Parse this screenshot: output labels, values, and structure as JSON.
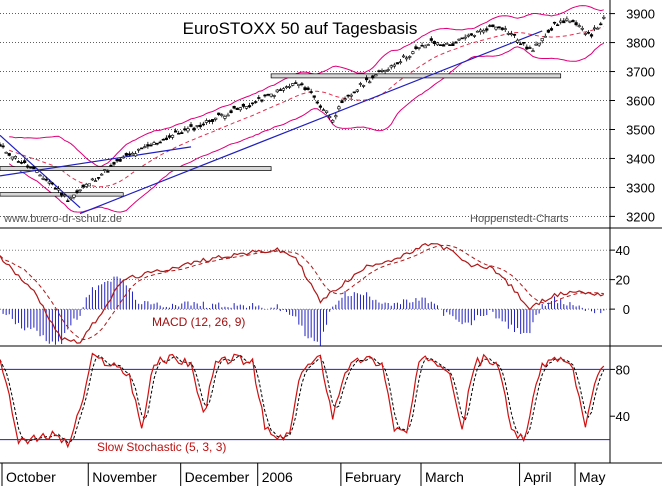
{
  "title": "EuroSTOXX 50 auf Tagesbasis",
  "source_left": "www.buero-dr-schulz.de",
  "source_right": "Hoppenstedt-Charts",
  "colors": {
    "background": "#ffffff",
    "price_bars": "#000000",
    "bollinger": "#e0007a",
    "moving_average": "#e03050",
    "trendline": "#2020c0",
    "macd_line": "#b01818",
    "macd_histogram": "#2020c0",
    "stoch_k": "#d01010",
    "stoch_reference": "#2020c0",
    "grid": "#000000",
    "resistance_box": "#d8d8d8"
  },
  "chart_data": [
    {
      "type": "candlestick",
      "title": "EuroSTOXX 50 auf Tagesbasis",
      "ylim": [
        3160,
        3940
      ],
      "y_ticks": [
        3200,
        3300,
        3400,
        3500,
        3600,
        3700,
        3800,
        3900
      ],
      "x_labels": [
        "October",
        "November",
        "December",
        "2006",
        "February",
        "March",
        "April",
        "May"
      ],
      "approx_close_trajectory": [
        [
          0,
          3440
        ],
        [
          8,
          3380
        ],
        [
          16,
          3320
        ],
        [
          22,
          3260
        ],
        [
          26,
          3290
        ],
        [
          32,
          3340
        ],
        [
          40,
          3400
        ],
        [
          48,
          3440
        ],
        [
          56,
          3480
        ],
        [
          64,
          3510
        ],
        [
          72,
          3550
        ],
        [
          80,
          3580
        ],
        [
          88,
          3620
        ],
        [
          96,
          3660
        ],
        [
          100,
          3640
        ],
        [
          104,
          3580
        ],
        [
          108,
          3540
        ],
        [
          112,
          3600
        ],
        [
          118,
          3660
        ],
        [
          124,
          3700
        ],
        [
          130,
          3740
        ],
        [
          136,
          3780
        ],
        [
          140,
          3800
        ],
        [
          146,
          3790
        ],
        [
          152,
          3820
        ],
        [
          158,
          3850
        ],
        [
          162,
          3860
        ],
        [
          166,
          3830
        ],
        [
          170,
          3790
        ],
        [
          173,
          3770
        ],
        [
          176,
          3820
        ],
        [
          180,
          3860
        ],
        [
          184,
          3880
        ],
        [
          188,
          3850
        ],
        [
          192,
          3830
        ],
        [
          196,
          3880
        ]
      ],
      "series": [
        {
          "name": "Bollinger Bands"
        },
        {
          "name": "Moving Average"
        },
        {
          "name": "Trendline"
        }
      ]
    },
    {
      "type": "line",
      "title": "MACD (12, 26, 9)",
      "ylim": [
        -25,
        55
      ],
      "y_ticks": [
        0,
        20,
        40
      ],
      "approx_macd_trajectory": [
        [
          0,
          35
        ],
        [
          10,
          15
        ],
        [
          20,
          -20
        ],
        [
          26,
          -22
        ],
        [
          32,
          -5
        ],
        [
          40,
          20
        ],
        [
          50,
          25
        ],
        [
          60,
          30
        ],
        [
          70,
          35
        ],
        [
          80,
          38
        ],
        [
          90,
          40
        ],
        [
          96,
          35
        ],
        [
          104,
          5
        ],
        [
          110,
          15
        ],
        [
          120,
          30
        ],
        [
          130,
          35
        ],
        [
          140,
          45
        ],
        [
          146,
          40
        ],
        [
          152,
          30
        ],
        [
          160,
          28
        ],
        [
          166,
          15
        ],
        [
          172,
          0
        ],
        [
          178,
          8
        ],
        [
          186,
          12
        ],
        [
          196,
          10
        ]
      ]
    },
    {
      "type": "line",
      "title": "Slow Stochastic (5, 3, 3)",
      "ylim": [
        0,
        100
      ],
      "y_ticks": [
        40,
        80
      ],
      "reference_levels": [
        20,
        80
      ],
      "approx_k_trajectory": [
        [
          0,
          90
        ],
        [
          6,
          20
        ],
        [
          12,
          20
        ],
        [
          18,
          25
        ],
        [
          22,
          15
        ],
        [
          26,
          45
        ],
        [
          30,
          90
        ],
        [
          36,
          85
        ],
        [
          42,
          75
        ],
        [
          46,
          30
        ],
        [
          50,
          85
        ],
        [
          56,
          90
        ],
        [
          62,
          85
        ],
        [
          66,
          40
        ],
        [
          70,
          85
        ],
        [
          76,
          90
        ],
        [
          82,
          85
        ],
        [
          86,
          30
        ],
        [
          90,
          20
        ],
        [
          94,
          25
        ],
        [
          98,
          80
        ],
        [
          104,
          90
        ],
        [
          108,
          40
        ],
        [
          112,
          80
        ],
        [
          118,
          90
        ],
        [
          124,
          85
        ],
        [
          128,
          30
        ],
        [
          132,
          25
        ],
        [
          136,
          85
        ],
        [
          140,
          90
        ],
        [
          146,
          80
        ],
        [
          150,
          30
        ],
        [
          154,
          85
        ],
        [
          158,
          90
        ],
        [
          162,
          80
        ],
        [
          166,
          30
        ],
        [
          170,
          20
        ],
        [
          176,
          85
        ],
        [
          182,
          90
        ],
        [
          186,
          80
        ],
        [
          190,
          30
        ],
        [
          194,
          75
        ],
        [
          196,
          80
        ]
      ]
    }
  ]
}
